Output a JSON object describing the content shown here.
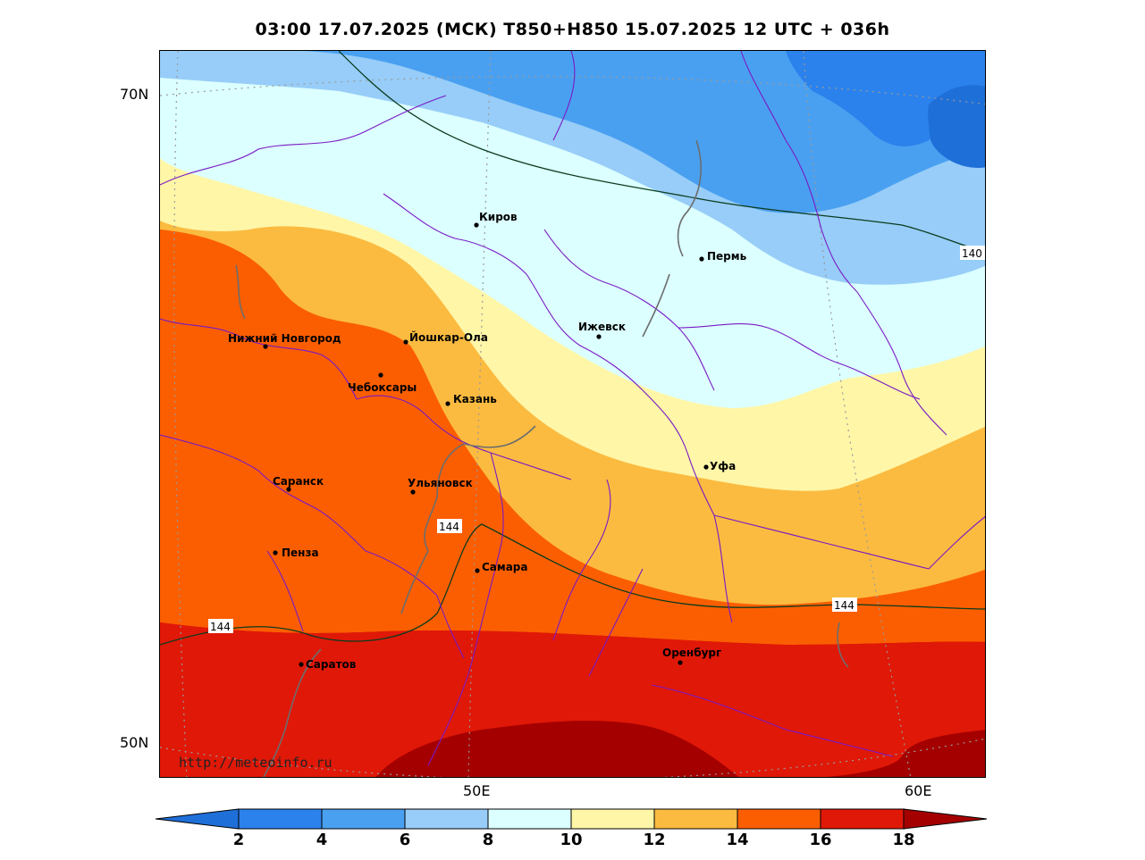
{
  "title": "03:00 17.07.2025 (МСК) T850+H850 15.07.2025 12 UTC + 036h",
  "lat_labels": [
    "70N",
    "50N"
  ],
  "lon_labels": [
    "50E",
    "60E"
  ],
  "watermark": "http://meteoinfo.ru",
  "cities": [
    {
      "name": "Киров"
    },
    {
      "name": "Пермь"
    },
    {
      "name": "Нижний Новгород"
    },
    {
      "name": "Йошкар-Ола"
    },
    {
      "name": "Ижевск"
    },
    {
      "name": "Чебоксары"
    },
    {
      "name": "Казань"
    },
    {
      "name": "Уфа"
    },
    {
      "name": "Саранск"
    },
    {
      "name": "Ульяновск"
    },
    {
      "name": "Пенза"
    },
    {
      "name": "Самара"
    },
    {
      "name": "Оренбург"
    },
    {
      "name": "Саратов"
    }
  ],
  "contour_labels": [
    "140",
    "144",
    "144",
    "144"
  ],
  "colorbar": {
    "ticks": [
      "2",
      "4",
      "6",
      "8",
      "10",
      "12",
      "14",
      "16",
      "18"
    ],
    "colors": [
      "#1f6fd8",
      "#2b82ec",
      "#4aa0f0",
      "#97cdf8",
      "#dcffff",
      "#fff6a8",
      "#fbbb40",
      "#fb5e00",
      "#e01808",
      "#a50000"
    ]
  }
}
